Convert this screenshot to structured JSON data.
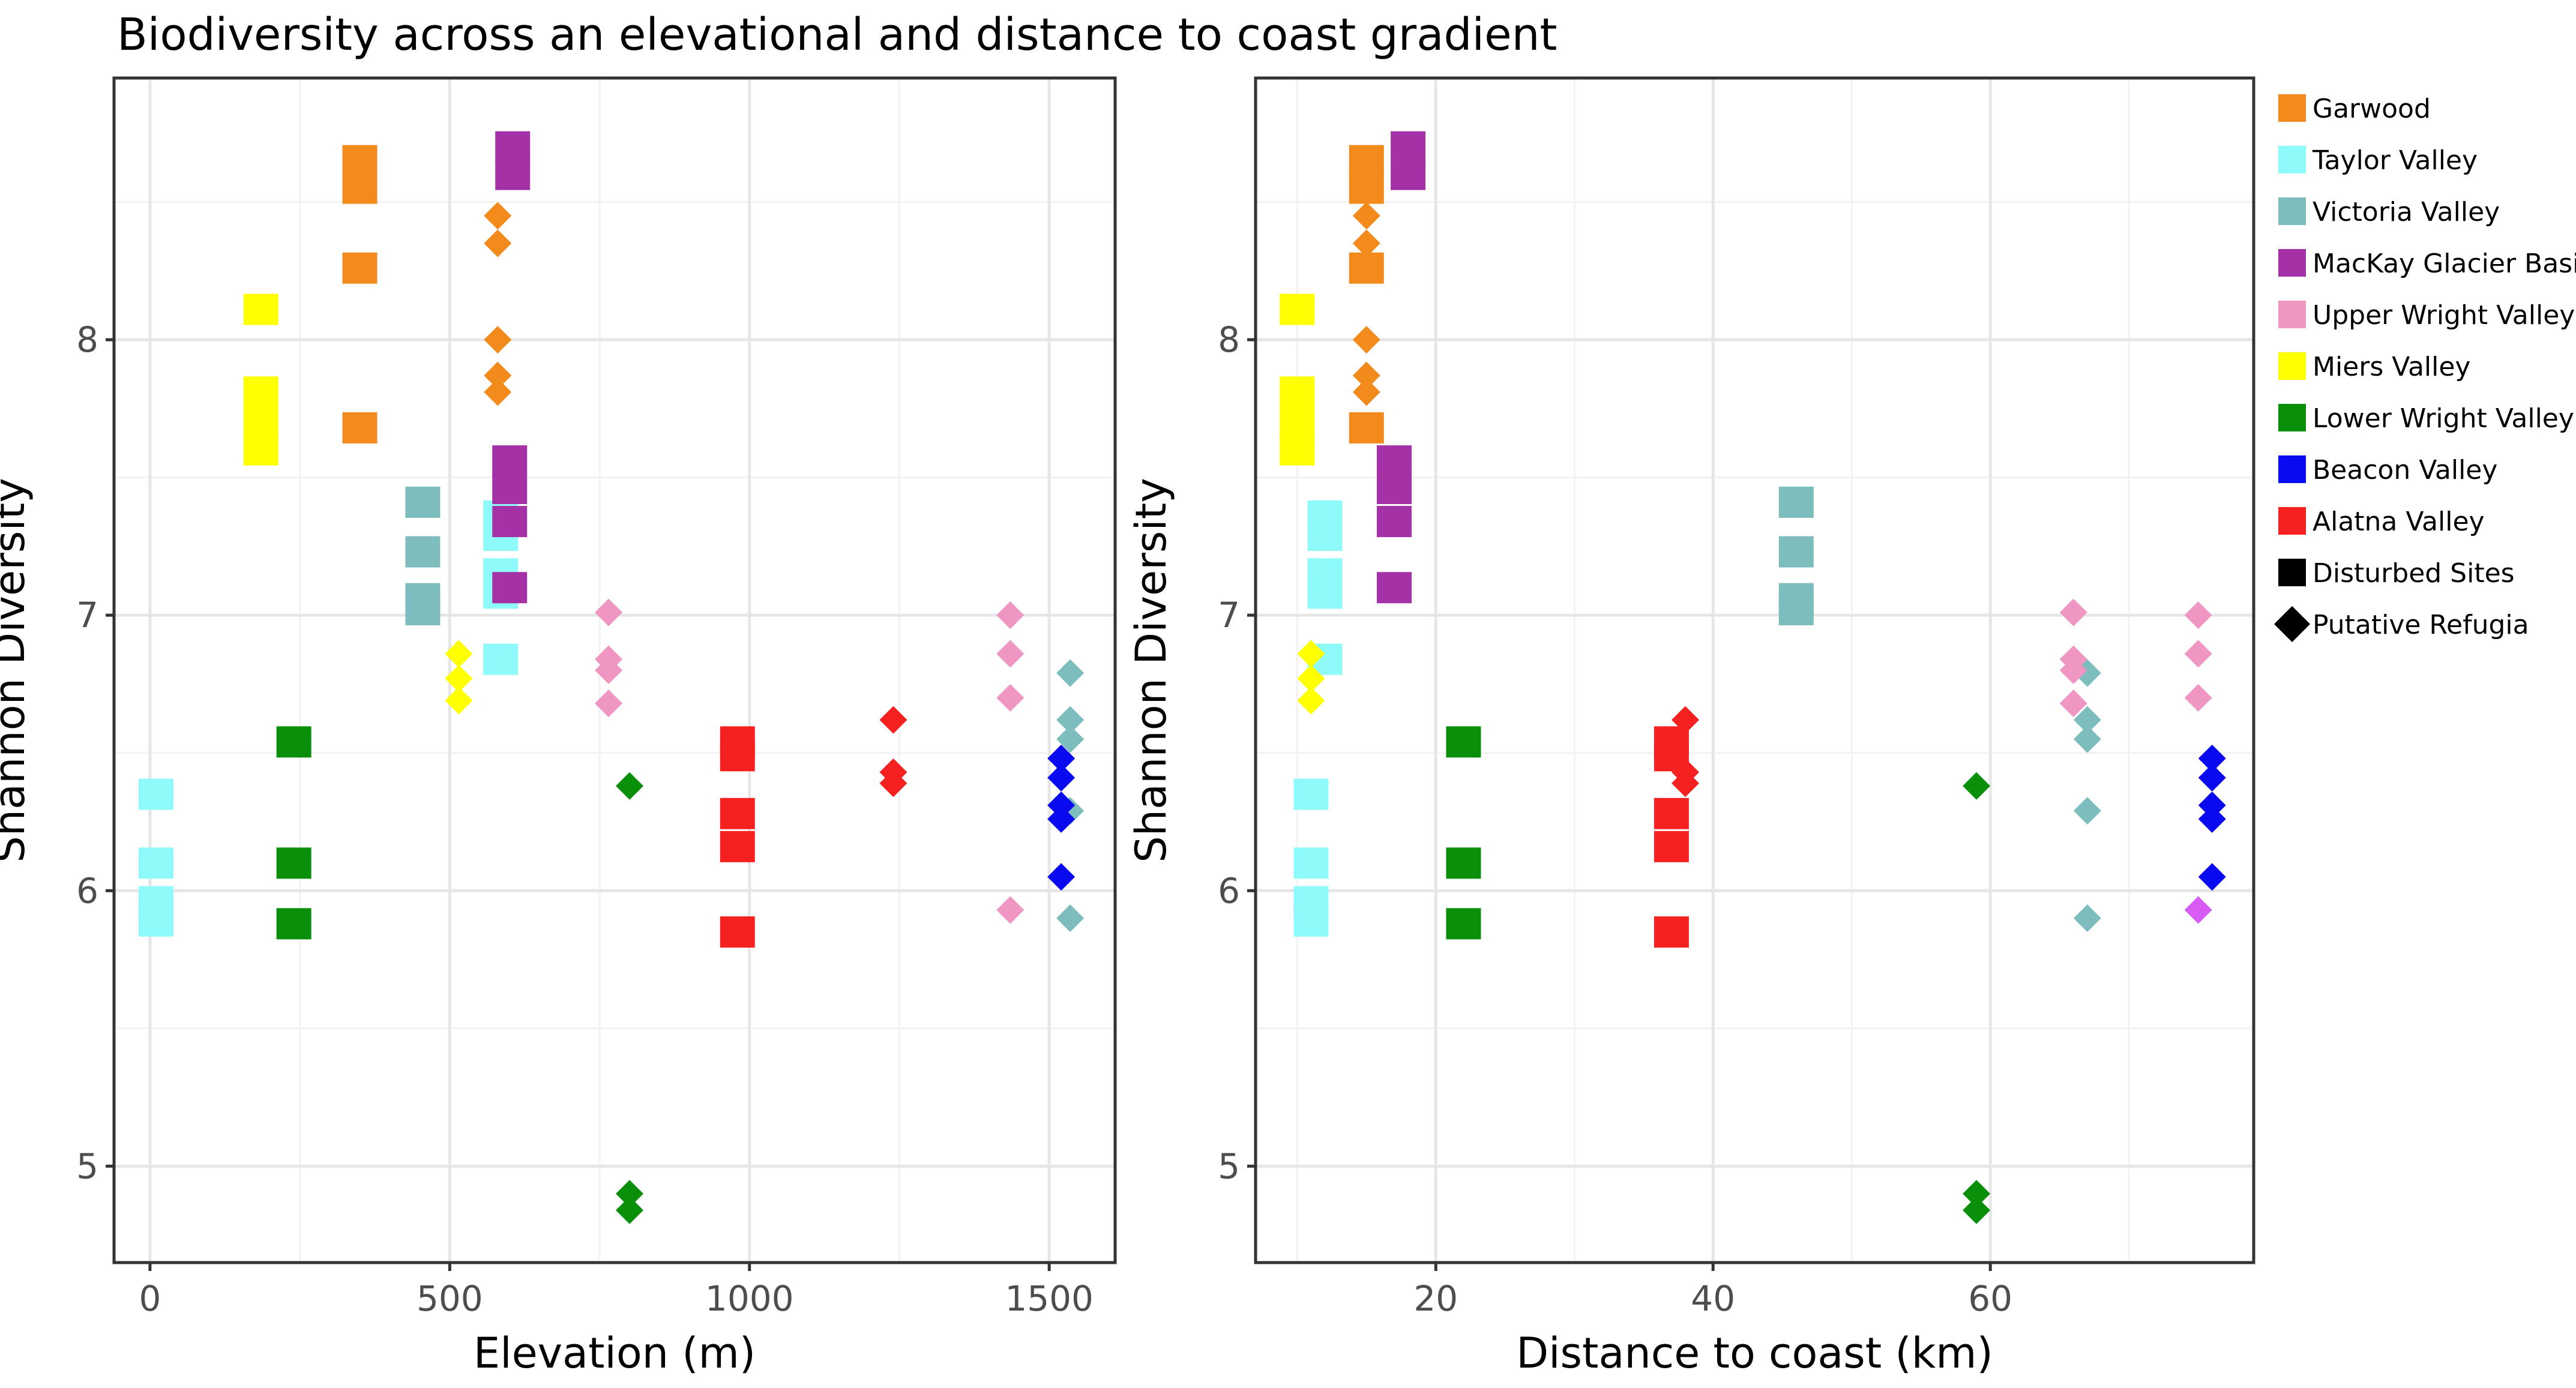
{
  "figure": {
    "title": "Biodiversity across an elevational and distance to coast gradient"
  },
  "legend": {
    "items": [
      {
        "label": "Garwood",
        "color": "#F28A1C",
        "shape": "square"
      },
      {
        "label": "Taylor Valley",
        "color": "#8FFAFA",
        "shape": "square"
      },
      {
        "label": "Victoria Valley",
        "color": "#7DBDBD",
        "shape": "square"
      },
      {
        "label": "MacKay Glacier Basin",
        "color": "#A431A6",
        "shape": "square"
      },
      {
        "label": "Upper Wright Valley",
        "color": "#F096C3",
        "shape": "square"
      },
      {
        "label": "Miers Valley",
        "color": "#FFFF00",
        "shape": "square"
      },
      {
        "label": "Lower Wright Valley",
        "color": "#0A8F0A",
        "shape": "square"
      },
      {
        "label": "Beacon Valley",
        "color": "#0A0AF0",
        "shape": "square"
      },
      {
        "label": "Alatna Valley",
        "color": "#F52020",
        "shape": "square"
      },
      {
        "label": "Disturbed Sites",
        "color": "#000000",
        "shape": "square"
      },
      {
        "label": "Putative Refugia",
        "color": "#000000",
        "shape": "diamond"
      }
    ]
  },
  "chart_data": [
    {
      "type": "scatter",
      "title": "Biodiversity across an elevational and distance to coast gradient",
      "xlabel": "Elevation (m)",
      "ylabel": "Shannon Diversity",
      "xlim": [
        -60,
        1610
      ],
      "ylim": [
        4.65,
        8.95
      ],
      "xticks": [
        0,
        500,
        1000,
        1500
      ],
      "xtick_labels": [
        "0",
        "500",
        "1000",
        "1500"
      ],
      "yticks": [
        5,
        6,
        7,
        8
      ],
      "ytick_labels": [
        "5",
        "6",
        "7",
        "8"
      ],
      "grid": true,
      "series": [
        {
          "name": "Garwood",
          "color": "#F28A1C",
          "points": [
            {
              "x": 350,
              "y": 8.65,
              "shape": "square"
            },
            {
              "x": 350,
              "y": 8.55,
              "shape": "square"
            },
            {
              "x": 350,
              "y": 8.26,
              "shape": "square"
            },
            {
              "x": 350,
              "y": 7.68,
              "shape": "square"
            },
            {
              "x": 580,
              "y": 8.45,
              "shape": "diamond"
            },
            {
              "x": 580,
              "y": 8.35,
              "shape": "diamond"
            },
            {
              "x": 580,
              "y": 8.0,
              "shape": "diamond"
            },
            {
              "x": 580,
              "y": 7.87,
              "shape": "diamond"
            },
            {
              "x": 580,
              "y": 7.81,
              "shape": "diamond"
            }
          ]
        },
        {
          "name": "Taylor Valley",
          "color": "#8FFAFA",
          "points": [
            {
              "x": 10,
              "y": 6.35,
              "shape": "square"
            },
            {
              "x": 10,
              "y": 6.1,
              "shape": "square"
            },
            {
              "x": 10,
              "y": 5.96,
              "shape": "square"
            },
            {
              "x": 10,
              "y": 5.89,
              "shape": "square"
            },
            {
              "x": 585,
              "y": 7.36,
              "shape": "square"
            },
            {
              "x": 585,
              "y": 7.29,
              "shape": "square"
            },
            {
              "x": 585,
              "y": 7.15,
              "shape": "square"
            },
            {
              "x": 585,
              "y": 7.08,
              "shape": "square"
            },
            {
              "x": 585,
              "y": 6.84,
              "shape": "square"
            }
          ]
        },
        {
          "name": "Victoria Valley",
          "color": "#7DBDBD",
          "points": [
            {
              "x": 455,
              "y": 7.41,
              "shape": "square"
            },
            {
              "x": 455,
              "y": 7.23,
              "shape": "square"
            },
            {
              "x": 455,
              "y": 7.06,
              "shape": "square"
            },
            {
              "x": 455,
              "y": 7.02,
              "shape": "square"
            },
            {
              "x": 1535,
              "y": 6.79,
              "shape": "diamond"
            },
            {
              "x": 1535,
              "y": 6.62,
              "shape": "diamond"
            },
            {
              "x": 1535,
              "y": 6.55,
              "shape": "diamond"
            },
            {
              "x": 1535,
              "y": 6.29,
              "shape": "diamond"
            },
            {
              "x": 1535,
              "y": 5.9,
              "shape": "diamond"
            }
          ]
        },
        {
          "name": "MacKay Glacier Basin",
          "color": "#A431A6",
          "points": [
            {
              "x": 605,
              "y": 8.7,
              "shape": "square"
            },
            {
              "x": 605,
              "y": 8.6,
              "shape": "square"
            },
            {
              "x": 600,
              "y": 7.56,
              "shape": "square"
            },
            {
              "x": 600,
              "y": 7.46,
              "shape": "square"
            },
            {
              "x": 600,
              "y": 7.34,
              "shape": "square"
            },
            {
              "x": 600,
              "y": 7.1,
              "shape": "square"
            }
          ]
        },
        {
          "name": "Upper Wright Valley",
          "color": "#F096C3",
          "points": [
            {
              "x": 765,
              "y": 7.01,
              "shape": "diamond"
            },
            {
              "x": 765,
              "y": 6.84,
              "shape": "diamond"
            },
            {
              "x": 765,
              "y": 6.8,
              "shape": "diamond"
            },
            {
              "x": 765,
              "y": 6.68,
              "shape": "diamond"
            },
            {
              "x": 1435,
              "y": 7.0,
              "shape": "diamond"
            },
            {
              "x": 1435,
              "y": 6.86,
              "shape": "diamond"
            },
            {
              "x": 1435,
              "y": 6.7,
              "shape": "diamond"
            },
            {
              "x": 1435,
              "y": 5.93,
              "shape": "diamond"
            }
          ]
        },
        {
          "name": "Miers Valley",
          "color": "#FFFF00",
          "points": [
            {
              "x": 185,
              "y": 8.11,
              "shape": "square"
            },
            {
              "x": 185,
              "y": 7.81,
              "shape": "square"
            },
            {
              "x": 185,
              "y": 7.7,
              "shape": "square"
            },
            {
              "x": 185,
              "y": 7.6,
              "shape": "square"
            },
            {
              "x": 515,
              "y": 6.86,
              "shape": "diamond"
            },
            {
              "x": 515,
              "y": 6.77,
              "shape": "diamond"
            },
            {
              "x": 515,
              "y": 6.69,
              "shape": "diamond"
            }
          ]
        },
        {
          "name": "Lower Wright Valley",
          "color": "#0A8F0A",
          "points": [
            {
              "x": 240,
              "y": 6.54,
              "shape": "square"
            },
            {
              "x": 240,
              "y": 6.1,
              "shape": "square"
            },
            {
              "x": 240,
              "y": 5.88,
              "shape": "square"
            },
            {
              "x": 800,
              "y": 6.38,
              "shape": "diamond"
            },
            {
              "x": 800,
              "y": 4.9,
              "shape": "diamond"
            },
            {
              "x": 800,
              "y": 4.84,
              "shape": "diamond"
            }
          ]
        },
        {
          "name": "Beacon Valley",
          "color": "#0A0AF0",
          "points": [
            {
              "x": 1520,
              "y": 6.48,
              "shape": "diamond"
            },
            {
              "x": 1520,
              "y": 6.41,
              "shape": "diamond"
            },
            {
              "x": 1520,
              "y": 6.31,
              "shape": "diamond"
            },
            {
              "x": 1520,
              "y": 6.26,
              "shape": "diamond"
            },
            {
              "x": 1520,
              "y": 6.05,
              "shape": "diamond"
            }
          ]
        },
        {
          "name": "Alatna Valley",
          "color": "#F52020",
          "points": [
            {
              "x": 980,
              "y": 6.54,
              "shape": "square"
            },
            {
              "x": 980,
              "y": 6.49,
              "shape": "square"
            },
            {
              "x": 980,
              "y": 6.28,
              "shape": "square"
            },
            {
              "x": 980,
              "y": 6.16,
              "shape": "square"
            },
            {
              "x": 980,
              "y": 5.85,
              "shape": "square"
            },
            {
              "x": 1240,
              "y": 6.62,
              "shape": "diamond"
            },
            {
              "x": 1240,
              "y": 6.43,
              "shape": "diamond"
            },
            {
              "x": 1240,
              "y": 6.39,
              "shape": "diamond"
            }
          ]
        }
      ]
    },
    {
      "type": "scatter",
      "title": "",
      "xlabel": "Distance to coast (km)",
      "ylabel": "Shannon Diversity",
      "xlim": [
        7.0,
        79.0
      ],
      "ylim": [
        4.65,
        8.95
      ],
      "xticks": [
        20,
        40,
        60
      ],
      "xtick_labels": [
        "20",
        "40",
        "60"
      ],
      "yticks": [
        5,
        6,
        7,
        8
      ],
      "ytick_labels": [
        "5",
        "6",
        "7",
        "8"
      ],
      "grid": true,
      "series": [
        {
          "name": "Garwood",
          "color": "#F28A1C",
          "points": [
            {
              "x": 15,
              "y": 8.65,
              "shape": "square"
            },
            {
              "x": 15,
              "y": 8.55,
              "shape": "square"
            },
            {
              "x": 15,
              "y": 8.26,
              "shape": "square"
            },
            {
              "x": 15,
              "y": 7.68,
              "shape": "square"
            },
            {
              "x": 15,
              "y": 8.45,
              "shape": "diamond"
            },
            {
              "x": 15,
              "y": 8.35,
              "shape": "diamond"
            },
            {
              "x": 15,
              "y": 8.0,
              "shape": "diamond"
            },
            {
              "x": 15,
              "y": 7.87,
              "shape": "diamond"
            },
            {
              "x": 15,
              "y": 7.81,
              "shape": "diamond"
            }
          ]
        },
        {
          "name": "Taylor Valley",
          "color": "#8FFAFA",
          "points": [
            {
              "x": 11,
              "y": 6.35,
              "shape": "square"
            },
            {
              "x": 11,
              "y": 6.1,
              "shape": "square"
            },
            {
              "x": 11,
              "y": 5.96,
              "shape": "square"
            },
            {
              "x": 11,
              "y": 5.89,
              "shape": "square"
            },
            {
              "x": 12,
              "y": 7.36,
              "shape": "square"
            },
            {
              "x": 12,
              "y": 7.29,
              "shape": "square"
            },
            {
              "x": 12,
              "y": 7.15,
              "shape": "square"
            },
            {
              "x": 12,
              "y": 7.08,
              "shape": "square"
            },
            {
              "x": 12,
              "y": 6.84,
              "shape": "square"
            }
          ]
        },
        {
          "name": "Victoria Valley",
          "color": "#7DBDBD",
          "points": [
            {
              "x": 46,
              "y": 7.41,
              "shape": "square"
            },
            {
              "x": 46,
              "y": 7.23,
              "shape": "square"
            },
            {
              "x": 46,
              "y": 7.06,
              "shape": "square"
            },
            {
              "x": 46,
              "y": 7.02,
              "shape": "square"
            },
            {
              "x": 67,
              "y": 6.79,
              "shape": "diamond"
            },
            {
              "x": 67,
              "y": 6.62,
              "shape": "diamond"
            },
            {
              "x": 67,
              "y": 6.55,
              "shape": "diamond"
            },
            {
              "x": 67,
              "y": 6.29,
              "shape": "diamond"
            },
            {
              "x": 67,
              "y": 5.9,
              "shape": "diamond"
            }
          ]
        },
        {
          "name": "MacKay Glacier Basin",
          "color": "#A431A6",
          "points": [
            {
              "x": 18,
              "y": 8.7,
              "shape": "square"
            },
            {
              "x": 18,
              "y": 8.6,
              "shape": "square"
            },
            {
              "x": 17,
              "y": 7.56,
              "shape": "square"
            },
            {
              "x": 17,
              "y": 7.46,
              "shape": "square"
            },
            {
              "x": 17,
              "y": 7.34,
              "shape": "square"
            },
            {
              "x": 17,
              "y": 7.1,
              "shape": "square"
            }
          ]
        },
        {
          "name": "Upper Wright Valley",
          "color": "#F096C3",
          "points": [
            {
              "x": 66,
              "y": 7.01,
              "shape": "diamond"
            },
            {
              "x": 66,
              "y": 6.84,
              "shape": "diamond"
            },
            {
              "x": 66,
              "y": 6.8,
              "shape": "diamond"
            },
            {
              "x": 66,
              "y": 6.68,
              "shape": "diamond"
            },
            {
              "x": 75,
              "y": 7.0,
              "shape": "diamond"
            },
            {
              "x": 75,
              "y": 6.86,
              "shape": "diamond"
            },
            {
              "x": 75,
              "y": 6.7,
              "shape": "diamond"
            },
            {
              "x": 75,
              "y": 5.93,
              "shape": "diamond",
              "color": "#D65CF5"
            }
          ]
        },
        {
          "name": "Miers Valley",
          "color": "#FFFF00",
          "points": [
            {
              "x": 10,
              "y": 8.11,
              "shape": "square"
            },
            {
              "x": 10,
              "y": 7.81,
              "shape": "square"
            },
            {
              "x": 10,
              "y": 7.7,
              "shape": "square"
            },
            {
              "x": 10,
              "y": 7.6,
              "shape": "square"
            },
            {
              "x": 11,
              "y": 6.86,
              "shape": "diamond"
            },
            {
              "x": 11,
              "y": 6.77,
              "shape": "diamond"
            },
            {
              "x": 11,
              "y": 6.69,
              "shape": "diamond"
            }
          ]
        },
        {
          "name": "Lower Wright Valley",
          "color": "#0A8F0A",
          "points": [
            {
              "x": 22,
              "y": 6.54,
              "shape": "square"
            },
            {
              "x": 22,
              "y": 6.1,
              "shape": "square"
            },
            {
              "x": 22,
              "y": 5.88,
              "shape": "square"
            },
            {
              "x": 59,
              "y": 6.38,
              "shape": "diamond"
            },
            {
              "x": 59,
              "y": 4.9,
              "shape": "diamond"
            },
            {
              "x": 59,
              "y": 4.84,
              "shape": "diamond"
            }
          ]
        },
        {
          "name": "Beacon Valley",
          "color": "#0A0AF0",
          "points": [
            {
              "x": 76,
              "y": 6.48,
              "shape": "diamond"
            },
            {
              "x": 76,
              "y": 6.41,
              "shape": "diamond"
            },
            {
              "x": 76,
              "y": 6.31,
              "shape": "diamond"
            },
            {
              "x": 76,
              "y": 6.26,
              "shape": "diamond"
            },
            {
              "x": 76,
              "y": 6.05,
              "shape": "diamond"
            }
          ]
        },
        {
          "name": "Alatna Valley",
          "color": "#F52020",
          "points": [
            {
              "x": 37,
              "y": 6.54,
              "shape": "square"
            },
            {
              "x": 37,
              "y": 6.49,
              "shape": "square"
            },
            {
              "x": 37,
              "y": 6.28,
              "shape": "square"
            },
            {
              "x": 37,
              "y": 6.16,
              "shape": "square"
            },
            {
              "x": 37,
              "y": 5.85,
              "shape": "square"
            },
            {
              "x": 38,
              "y": 6.62,
              "shape": "diamond"
            },
            {
              "x": 38,
              "y": 6.43,
              "shape": "diamond"
            },
            {
              "x": 38,
              "y": 6.39,
              "shape": "diamond"
            }
          ]
        }
      ]
    }
  ]
}
